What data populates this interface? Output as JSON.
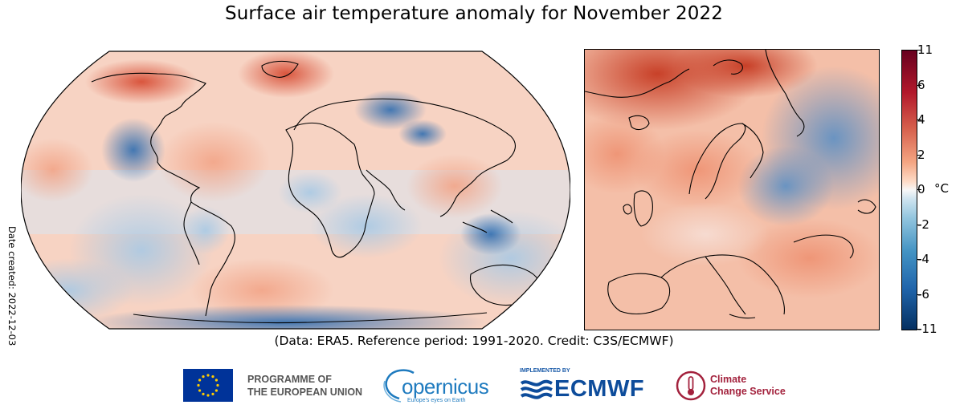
{
  "title": "Surface air temperature anomaly for November 2022",
  "date_created": "Date created: 2022-12-03",
  "colorbar": {
    "ticks": [
      "11",
      "6",
      "4",
      "2",
      "0",
      "-2",
      "-4",
      "-6",
      "-11"
    ],
    "unit": "°C",
    "range": [
      -11,
      11
    ]
  },
  "credit": "(Data: ERA5.  Reference period: 1991-2020.  Credit: C3S/ECMWF)",
  "logos": {
    "eu": "PROGRAMME OF THE EUROPEAN UNION",
    "eu_line1": "PROGRAMME OF",
    "eu_line2": "THE EUROPEAN UNION",
    "copernicus": "opernicus",
    "copernicus_tagline": "Europe's eyes on Earth",
    "implemented_by": "IMPLEMENTED BY",
    "ecmwf": "ECMWF",
    "c3s_line1": "Climate",
    "c3s_line2": "Change Service"
  },
  "colors": {
    "warm_max": "#67001f",
    "warm": "#d6604d",
    "neutral": "#f7f7f7",
    "cool": "#4393c3",
    "cool_max": "#053061"
  }
}
